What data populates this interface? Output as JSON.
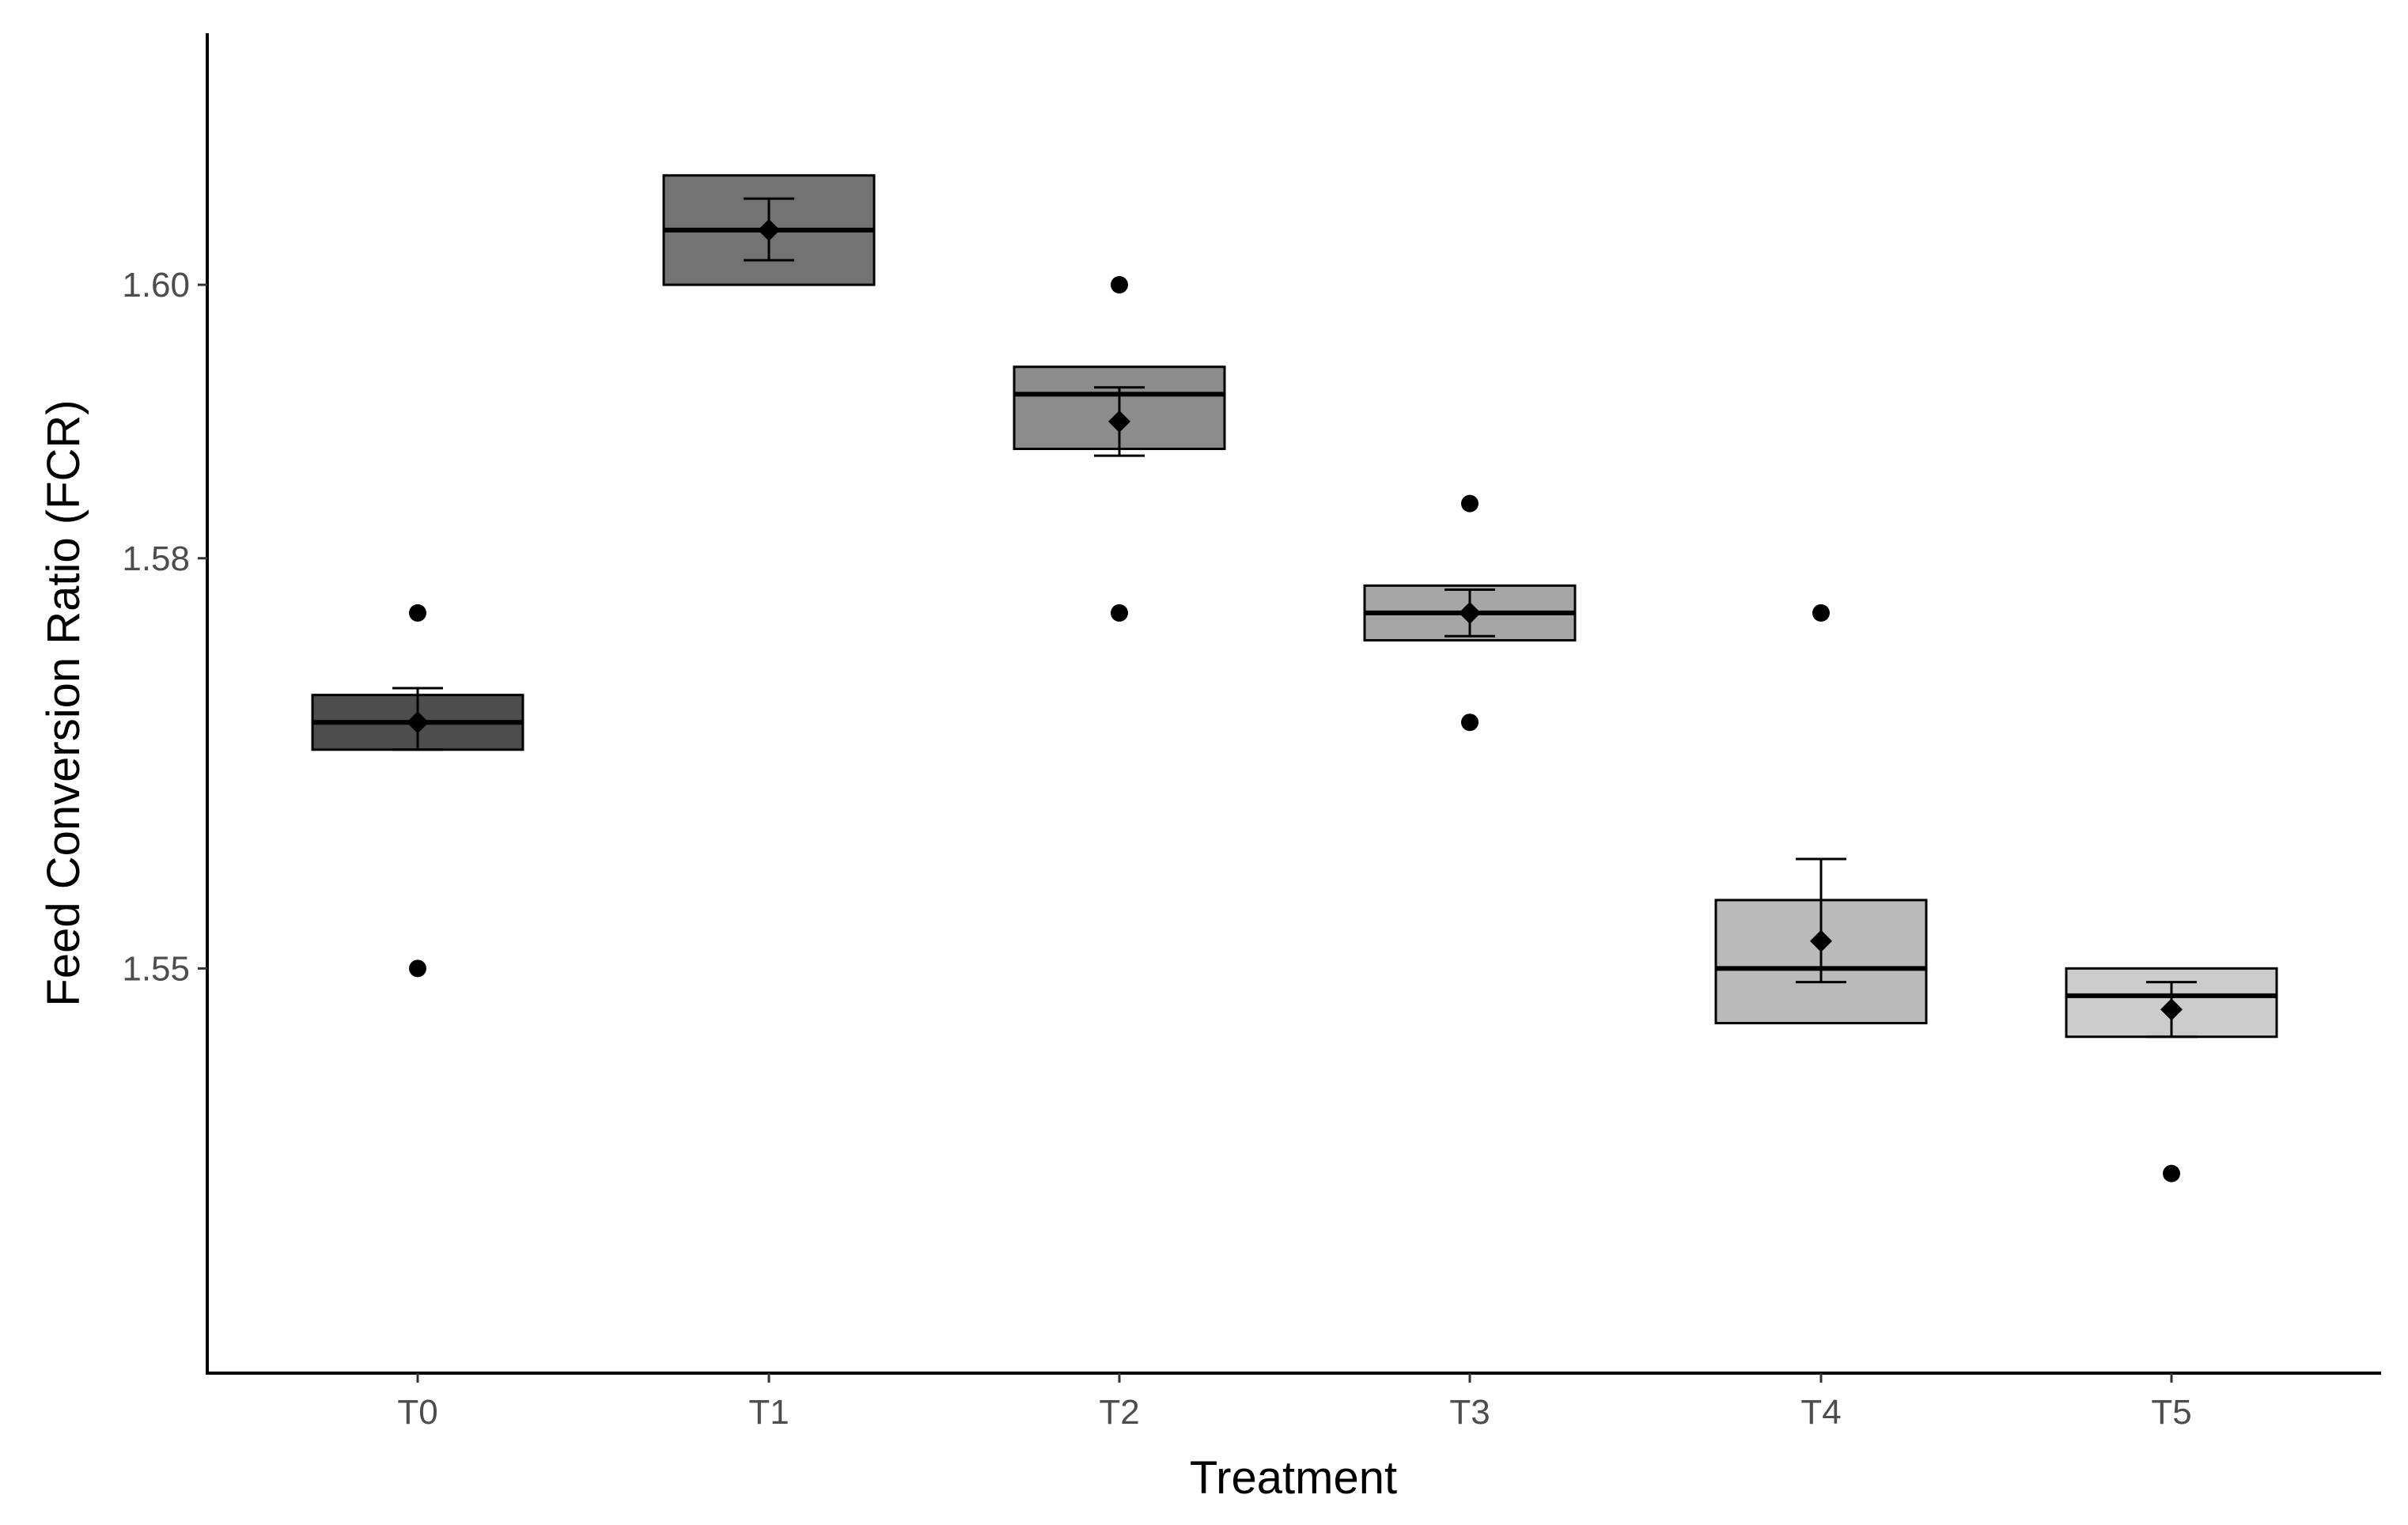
{
  "chart_data": {
    "type": "boxplot",
    "title": "",
    "xlabel": "Treatment",
    "ylabel": "Feed Conversion Ratio (FCR)",
    "ylim": [
      1.5204,
      1.6184
    ],
    "yticks": [
      1.55,
      1.58,
      1.6
    ],
    "ytick_labels": [
      "1.55",
      "1.58",
      "1.60"
    ],
    "grid": false,
    "legend": "none",
    "categories": [
      "T0",
      "T1",
      "T2",
      "T3",
      "T4",
      "T5"
    ],
    "fills": [
      "#4d4d4d",
      "#737373",
      "#8c8c8c",
      "#a6a6a6",
      "#bababa",
      "#cccccc"
    ],
    "boxes": [
      {
        "label": "T0",
        "q1": 1.566,
        "median": 1.568,
        "q3": 1.57
      },
      {
        "label": "T1",
        "q1": 1.6,
        "median": 1.604,
        "q3": 1.608
      },
      {
        "label": "T2",
        "q1": 1.588,
        "median": 1.592,
        "q3": 1.594
      },
      {
        "label": "T3",
        "q1": 1.574,
        "median": 1.576,
        "q3": 1.578
      },
      {
        "label": "T4",
        "q1": 1.546,
        "median": 1.55,
        "q3": 1.555
      },
      {
        "label": "T5",
        "q1": 1.545,
        "median": 1.548,
        "q3": 1.55
      }
    ],
    "means": [
      {
        "label": "T0",
        "mean": 1.568,
        "se_low": 1.566,
        "se_high": 1.5705
      },
      {
        "label": "T1",
        "mean": 1.604,
        "se_low": 1.6018,
        "se_high": 1.6063
      },
      {
        "label": "T2",
        "mean": 1.59,
        "se_low": 1.5875,
        "se_high": 1.5925
      },
      {
        "label": "T3",
        "mean": 1.576,
        "se_low": 1.5743,
        "se_high": 1.5777
      },
      {
        "label": "T4",
        "mean": 1.552,
        "se_low": 1.549,
        "se_high": 1.558
      },
      {
        "label": "T5",
        "mean": 1.547,
        "se_low": 1.545,
        "se_high": 1.549
      }
    ],
    "points": [
      {
        "label": "T0",
        "value": 1.576
      },
      {
        "label": "T0",
        "value": 1.55
      },
      {
        "label": "T2",
        "value": 1.6
      },
      {
        "label": "T2",
        "value": 1.576
      },
      {
        "label": "T3",
        "value": 1.584
      },
      {
        "label": "T3",
        "value": 1.568
      },
      {
        "label": "T4",
        "value": 1.576
      },
      {
        "label": "T5",
        "value": 1.535
      }
    ]
  }
}
